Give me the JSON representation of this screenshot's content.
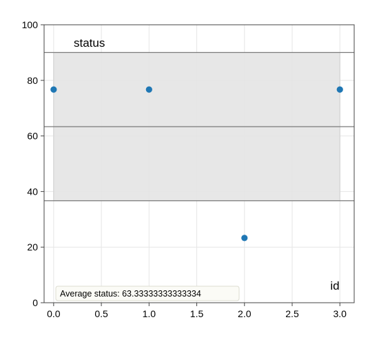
{
  "chart_data": {
    "type": "scatter",
    "ylabel": "status",
    "xlabel": "id",
    "xlim": [
      -0.1,
      3.15
    ],
    "ylim": [
      0,
      100
    ],
    "x_ticks": [
      0.0,
      0.5,
      1.0,
      1.5,
      2.0,
      2.5,
      3.0
    ],
    "x_tick_labels": [
      "0.0",
      "0.5",
      "1.0",
      "1.5",
      "2.0",
      "2.5",
      "3.0"
    ],
    "y_ticks": [
      0,
      20,
      40,
      60,
      80,
      100
    ],
    "y_tick_labels": [
      "0",
      "20",
      "40",
      "60",
      "80",
      "100"
    ],
    "grid": true,
    "series": [
      {
        "x": [
          0,
          1,
          2,
          3
        ],
        "y": [
          76.7,
          76.7,
          23.3,
          76.7
        ],
        "color": "#1f77b4"
      }
    ],
    "band": {
      "x_start": 0,
      "x_end": 3,
      "y_low": 36.7,
      "y_high": 90.0,
      "color": "#e4e4e4"
    },
    "hlines": [
      90.0,
      63.33,
      36.7
    ],
    "annotation": "Average status: 63.33333333333334"
  }
}
